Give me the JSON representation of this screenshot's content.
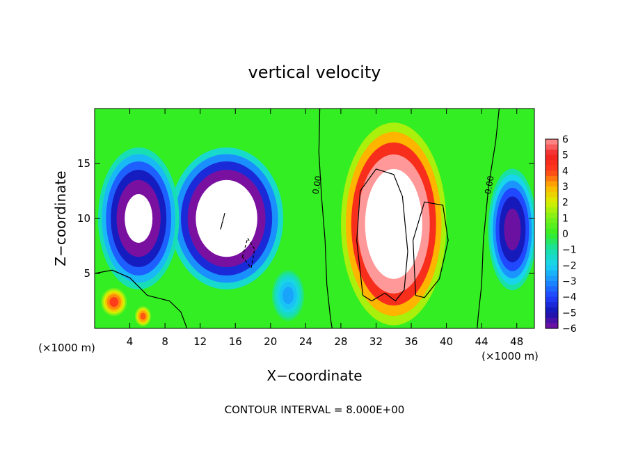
{
  "chart_data": {
    "type": "heatmap",
    "title": "vertical velocity",
    "xlabel": "X−coordinate",
    "ylabel": "Z−coordinate",
    "x_unit_label": "(×1000 m)",
    "y_unit_label": "(×1000 m)",
    "footer": "CONTOUR INTERVAL = 8.000E+00",
    "xlim": [
      0,
      50
    ],
    "ylim": [
      0,
      20
    ],
    "x_ticks": [
      4,
      8,
      12,
      16,
      20,
      24,
      28,
      32,
      36,
      40,
      44,
      48
    ],
    "x_tick_labels": [
      "4",
      "8",
      "12",
      "16",
      "20",
      "24",
      "28",
      "32",
      "36",
      "40",
      "44",
      "48"
    ],
    "y_ticks": [
      5,
      10,
      15
    ],
    "y_tick_labels": [
      "5",
      "10",
      "15"
    ],
    "colorbar": {
      "range": [
        -6,
        6
      ],
      "tick_values": [
        6,
        5,
        4,
        3,
        2,
        1,
        0,
        -1,
        -2,
        -3,
        -4,
        -5,
        -6
      ],
      "tick_labels": [
        "6",
        "5",
        "4",
        "3",
        "2",
        "1",
        "0",
        "−1",
        "−2",
        "−3",
        "−4",
        "−5",
        "−6"
      ]
    },
    "contour_labels": [
      "0.00",
      "0.00"
    ],
    "features": [
      {
        "kind": "updraft",
        "x": 33,
        "z": 10,
        "value": 9
      },
      {
        "kind": "updraft",
        "x": 38,
        "z": 8,
        "value": 8
      },
      {
        "kind": "downdraft",
        "x": 15,
        "z": 10,
        "value": -9
      },
      {
        "kind": "downdraft",
        "x": 5,
        "z": 9,
        "value": -7
      },
      {
        "kind": "downdraft",
        "x": 48,
        "z": 9,
        "value": -6
      },
      {
        "kind": "updraft",
        "x": 2,
        "z": 2.5,
        "value": 4
      },
      {
        "kind": "updraft",
        "x": 5.5,
        "z": 1,
        "value": 4
      }
    ]
  }
}
